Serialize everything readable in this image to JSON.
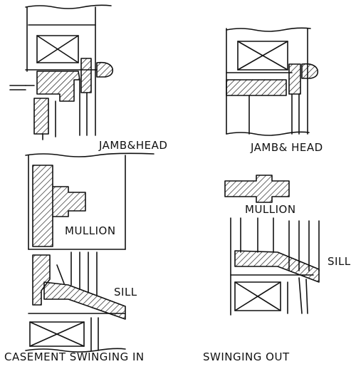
{
  "labels": {
    "jamb_head_in": "JAMB&HEAD",
    "jamb_head_out": "JAMB& HEAD",
    "mullion_in": "MULLION",
    "mullion_out": "MULLION",
    "sill_in": "SILL",
    "sill_out": "SILL",
    "caption_in": "CASEMENT SWINGING IN",
    "caption_out": "SWINGING OUT"
  },
  "colors": {
    "ink": "#111111",
    "paper": "#ffffff"
  }
}
